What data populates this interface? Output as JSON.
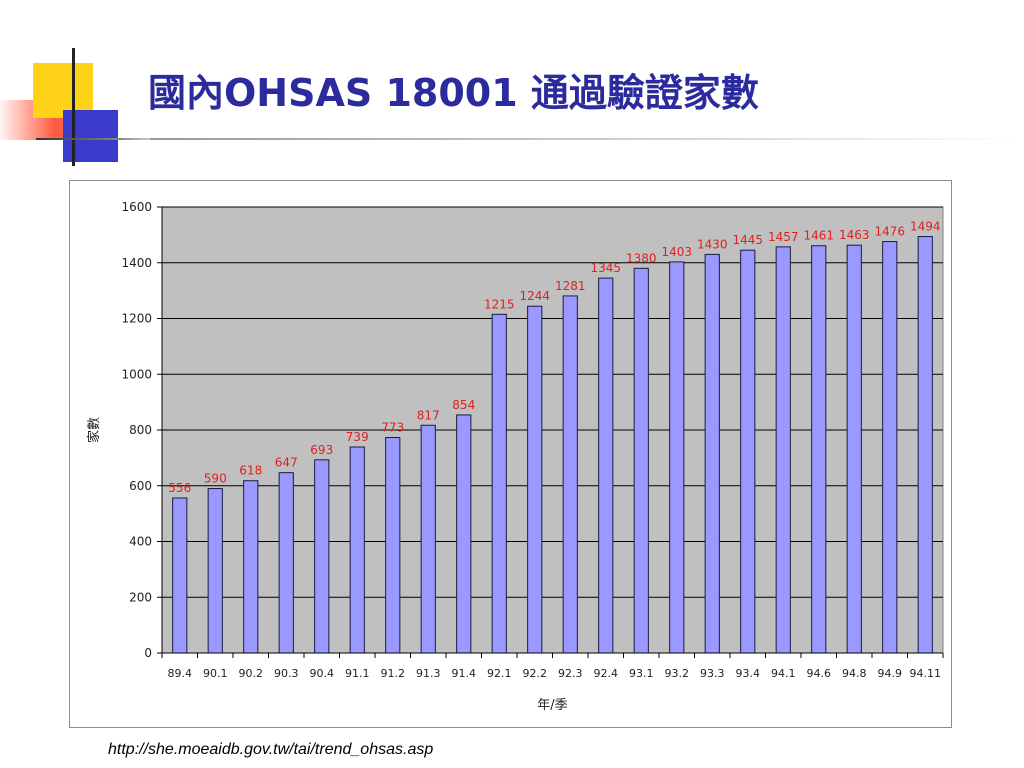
{
  "slide": {
    "title": "國內OHSAS 18001 通過驗證家數",
    "source_url": "http://she.moeaidb.gov.tw/tai/trend_ohsas.asp"
  },
  "colors": {
    "title": "#2b2b9e",
    "plot_background": "#c0c0c0",
    "bar_fill": "#9999ff",
    "bar_stroke": "#1a1a40",
    "value_label": "#e02020",
    "deco_yellow": "#ffd21a",
    "deco_blue": "#3a3acb",
    "deco_red": "#ff5a40"
  },
  "chart_data": {
    "type": "bar",
    "title": "",
    "xlabel": "年/季",
    "ylabel": "家數",
    "ylim": [
      0,
      1600
    ],
    "yticks": [
      0,
      200,
      400,
      600,
      800,
      1000,
      1200,
      1400,
      1600
    ],
    "grid": true,
    "categories": [
      "89.4",
      "90.1",
      "90.2",
      "90.3",
      "90.4",
      "91.1",
      "91.2",
      "91.3",
      "91.4",
      "92.1",
      "92.2",
      "92.3",
      "92.4",
      "93.1",
      "93.2",
      "93.3",
      "93.4",
      "94.1",
      "94.6",
      "94.8",
      "94.9",
      "94.11"
    ],
    "values": [
      556,
      590,
      618,
      647,
      693,
      739,
      773,
      817,
      854,
      1215,
      1244,
      1281,
      1345,
      1380,
      1403,
      1430,
      1445,
      1457,
      1461,
      1463,
      1476,
      1494
    ]
  }
}
